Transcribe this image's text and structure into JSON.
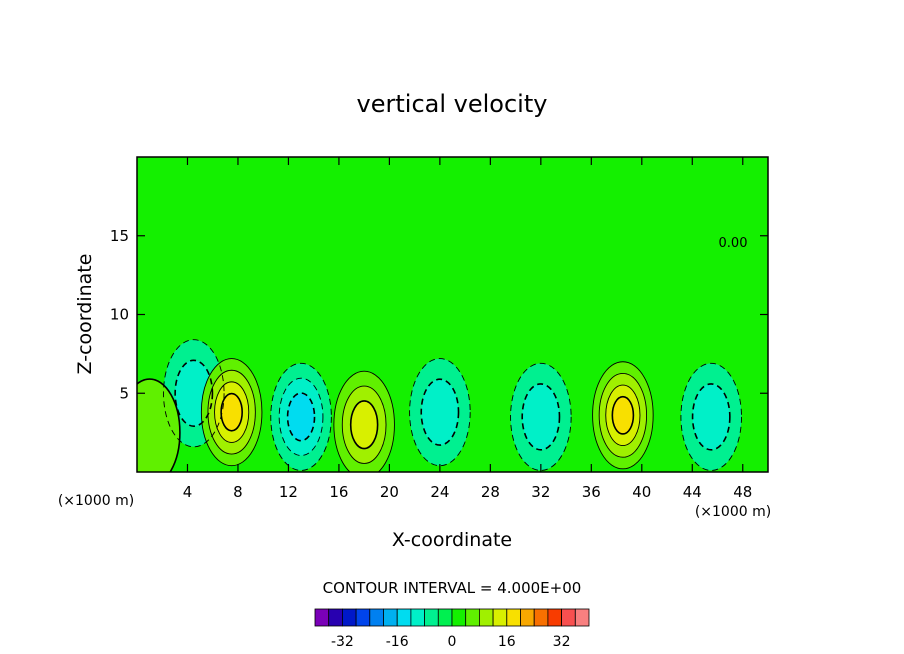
{
  "chart_data": {
    "type": "heatmap",
    "title": "vertical velocity",
    "xlabel": "X-coordinate",
    "ylabel": "Z-coordinate",
    "x_unit_label": "(×1000 m)",
    "z_unit_label": "(×1000 m)",
    "xlim": [
      0,
      50
    ],
    "ylim": [
      0,
      20
    ],
    "x_ticks": [
      4,
      8,
      12,
      16,
      20,
      24,
      28,
      32,
      36,
      40,
      44,
      48
    ],
    "y_ticks": [
      5,
      10,
      15
    ],
    "contour_interval_text": "CONTOUR INTERVAL = 4.000E+00",
    "contour_interval": 4,
    "contour_label": "0.00",
    "colorbar": {
      "levels": [
        -40,
        -36,
        -32,
        -28,
        -24,
        -20,
        -16,
        -12,
        -8,
        -4,
        0,
        4,
        8,
        12,
        16,
        20,
        24,
        28,
        32,
        36,
        40
      ],
      "tick_labels": [
        "-32",
        "-16",
        "0",
        "16",
        "32"
      ],
      "tick_values": [
        -32,
        -16,
        0,
        16,
        32
      ],
      "colors": [
        "#7a00b8",
        "#2800b0",
        "#0018c8",
        "#0044ec",
        "#0080f0",
        "#00b0f0",
        "#00dcf0",
        "#00f0c8",
        "#00f090",
        "#00f050",
        "#14f000",
        "#60f000",
        "#a0f000",
        "#d8f000",
        "#f8e000",
        "#f8a800",
        "#f87000",
        "#f83c00",
        "#f85050",
        "#f88080"
      ]
    },
    "cells": [
      {
        "x": 4.5,
        "z": 5.0,
        "w": -8
      },
      {
        "x": 7.5,
        "z": 3.8,
        "w": 16
      },
      {
        "x": 13.0,
        "z": 3.5,
        "w": -12
      },
      {
        "x": 18.0,
        "z": 3.0,
        "w": 14
      },
      {
        "x": 24.0,
        "z": 3.8,
        "w": -10
      },
      {
        "x": 32.0,
        "z": 3.5,
        "w": -9
      },
      {
        "x": 38.5,
        "z": 3.6,
        "w": 18
      },
      {
        "x": 45.5,
        "z": 3.5,
        "w": -10
      },
      {
        "x": 1.0,
        "z": 2.5,
        "w": 6
      }
    ]
  }
}
